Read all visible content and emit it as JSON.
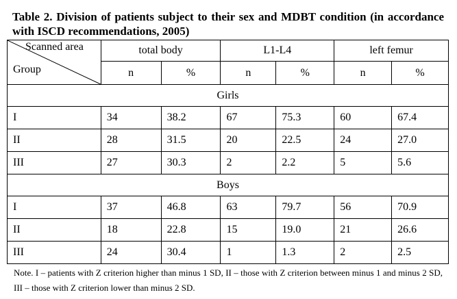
{
  "caption": "Table 2. Division of patients subject to their sex and MDBT condition (in accordance with ISCD recommendations, 2005)",
  "header": {
    "corner_top": "Scanned area",
    "corner_bottom": "Group",
    "groups": [
      "total body",
      "L1-L4",
      "left femur"
    ],
    "n_label": "n",
    "pct_label": "%"
  },
  "sections": [
    {
      "title": "Girls",
      "rows": [
        {
          "group": "I",
          "values": [
            "34",
            "38.2",
            "67",
            "75.3",
            "60",
            "67.4"
          ]
        },
        {
          "group": "II",
          "values": [
            "28",
            "31.5",
            "20",
            "22.5",
            "24",
            "27.0"
          ]
        },
        {
          "group": "III",
          "values": [
            "27",
            "30.3",
            "2",
            "2.2",
            "5",
            "5.6"
          ]
        }
      ]
    },
    {
      "title": "Boys",
      "rows": [
        {
          "group": "I",
          "values": [
            "37",
            "46.8",
            "63",
            "79.7",
            "56",
            "70.9"
          ]
        },
        {
          "group": "II",
          "values": [
            "18",
            "22.8",
            "15",
            "19.0",
            "21",
            "26.6"
          ]
        },
        {
          "group": "III",
          "values": [
            "24",
            "30.4",
            "1",
            "1.3",
            "2",
            "2.5"
          ]
        }
      ]
    }
  ],
  "note": "Note.  I – patients with Z criterion higher than minus 1 SD, II – those with Z criterion between minus 1 and minus 2 SD, III – those with Z criterion lower than minus 2 SD."
}
